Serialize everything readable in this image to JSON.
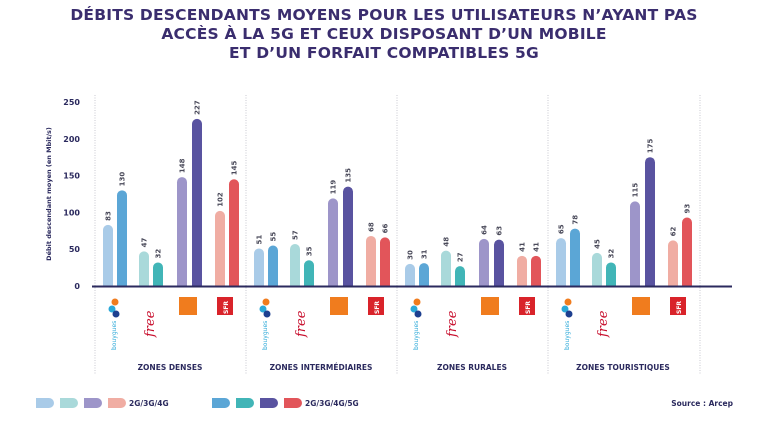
{
  "chart_data": {
    "type": "bar",
    "title": "DÉBITS DESCENDANTS MOYENS POUR LES UTILISATEURS N'AYANT PAS ACCÈS À LA 5G ET CEUX DISPOSANT D'UN MOBILE ET D'UN FORFAIT COMPATIBLES 5G",
    "title_lines": [
      "DÉBITS DESCENDANTS MOYENS POUR LES UTILISATEURS N’AYANT PAS",
      "ACCÈS À LA 5G ET CEUX DISPOSANT D’UN MOBILE",
      "ET D’UN FORFAIT COMPATIBLES 5G"
    ],
    "ylabel": "Débit descendant moyen (en Mbit/s)",
    "ylim": [
      0,
      250
    ],
    "yticks": [
      0,
      50,
      100,
      150,
      200,
      250
    ],
    "grid": false,
    "zones": [
      "ZONES DENSES",
      "ZONES INTERMÉDIAIRES",
      "ZONES RURALES",
      "ZONES TOURISTIQUES"
    ],
    "operators": [
      "bouygues",
      "free",
      "orange",
      "SFR"
    ],
    "series": [
      {
        "name": "2G/3G/4G",
        "values": [
          [
            83,
            47,
            148,
            102
          ],
          [
            51,
            57,
            119,
            68
          ],
          [
            30,
            48,
            64,
            41
          ],
          [
            65,
            45,
            115,
            62
          ]
        ]
      },
      {
        "name": "2G/3G/4G/5G",
        "values": [
          [
            130,
            32,
            227,
            145
          ],
          [
            55,
            35,
            135,
            66
          ],
          [
            31,
            27,
            63,
            41
          ],
          [
            78,
            32,
            175,
            93
          ]
        ]
      }
    ],
    "colors": {
      "2G/3G/4G": [
        "#a9cbe8",
        "#a9d9da",
        "#9d95c9",
        "#f0ada3"
      ],
      "2G/3G/4G/5G": [
        "#5ba6d6",
        "#41b5b7",
        "#5953a0",
        "#e2555a"
      ]
    },
    "legend_placement": "bottom-left",
    "source": "Source : Arcep"
  }
}
